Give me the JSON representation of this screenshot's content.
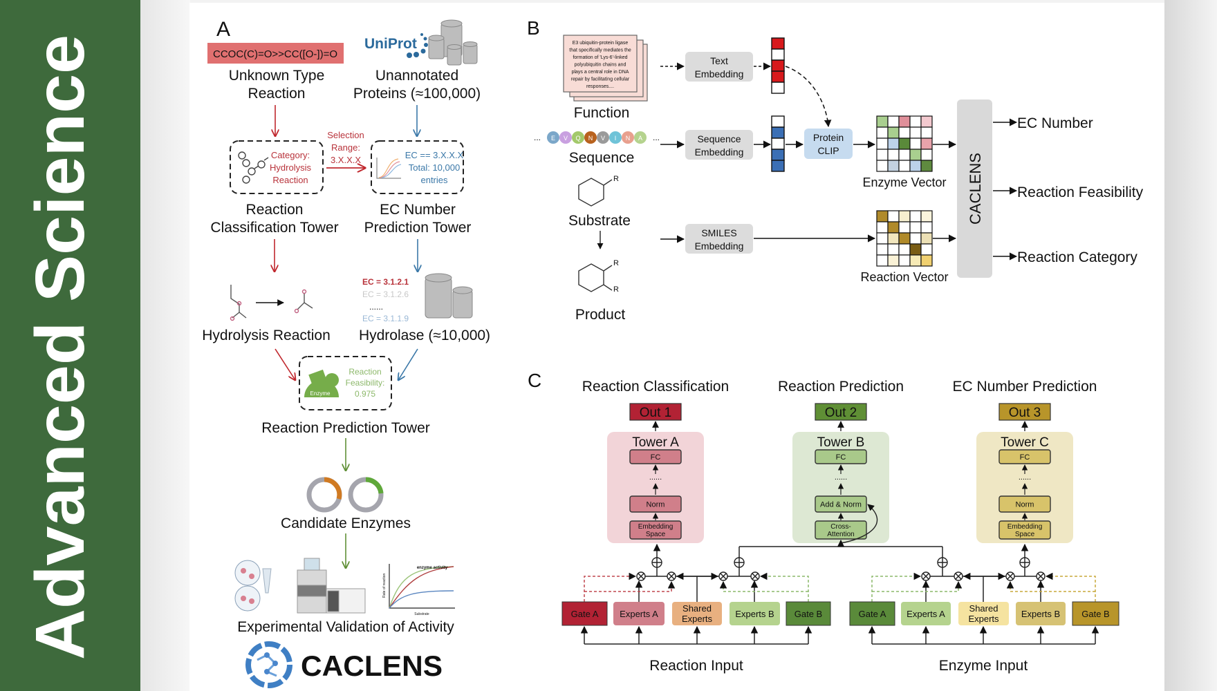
{
  "banner": {
    "text": "Advanced Science",
    "color": "#3e6a3c"
  },
  "panel_a": {
    "letter": "A",
    "smiles": "CCOC(C)=O>>CC([O-])=O",
    "unknown_label": [
      "Unknown Type",
      "Reaction"
    ],
    "uniprot_logo": "UniProt",
    "unannotated_label": [
      "Unannotated",
      "Proteins (≈100,000)"
    ],
    "category_box": [
      "Category:",
      "Hydrolysis",
      "Reaction"
    ],
    "selection": [
      "Selection",
      "Range:",
      "3.X.X.X"
    ],
    "ec_box": [
      "EC == 3.X.X.X",
      "Total: 10,000",
      "entries"
    ],
    "rc_tower": [
      "Reaction",
      "Classification Tower"
    ],
    "ec_tower": [
      "EC Number",
      "Prediction Tower"
    ],
    "ec_list": [
      "EC = 3.1.2.1",
      "EC = 3.1.2.6",
      "......",
      "EC = 3.1.1.9"
    ],
    "hydrolysis_label": "Hydrolysis Reaction",
    "hydrolase_label": "Hydrolase (≈10,000)",
    "enzyme_tag": "Enzyme",
    "feasibility": [
      "Reaction",
      "Feasibility:",
      "0.975"
    ],
    "rp_tower": "Reaction Prediction Tower",
    "candidate_label": "Candidate Enzymes",
    "chart_title": "enzyme activity",
    "chart_ylabel": "Rate of reaction",
    "chart_xlabel": "Substrate",
    "validation_label": "Experimental Validation of Activity",
    "logo_text": "CACLENS"
  },
  "panel_b": {
    "letter": "B",
    "function_text": [
      "E3 ubiquitin-protein ligase",
      "that specifically mediates the",
      "formation of 'Lys-6'-linked",
      "polyubiquitin chains and",
      "plays a central role in DNA",
      "repair by facilitating cellular",
      "responses...."
    ],
    "function_label": "Function",
    "sequence_letters": [
      "E",
      "V",
      "Q",
      "N",
      "V",
      "I",
      "N",
      "A"
    ],
    "sequence_colors": [
      "#7ba7c9",
      "#c9a0e0",
      "#a3c96b",
      "#b8621e",
      "#9a9a9a",
      "#6fc3d8",
      "#e8a08e",
      "#b5d38e"
    ],
    "sequence_label": "Sequence",
    "substrate_label": "Substrate",
    "product_label": "Product",
    "r_group": "R",
    "text_embedding": [
      "Text",
      "Embedding"
    ],
    "sequence_embedding": [
      "Sequence",
      "Embedding"
    ],
    "smiles_embedding": [
      "SMILES",
      "Embedding"
    ],
    "protein_clip": [
      "Protein",
      "CLIP"
    ],
    "text_vector": [
      "#d7191c",
      "#ffffff",
      "#d7191c",
      "#d7191c",
      "#ffffff"
    ],
    "seq_vector": [
      "#ffffff",
      "#3b6fb5",
      "#ffffff",
      "#3b6fb5",
      "#3b6fb5"
    ],
    "enzyme_vector_label": "Enzyme Vector",
    "enzyme_vector": [
      [
        "#a9cf8f",
        "#ffffff",
        "#e08f9a",
        "#ffffff",
        "#f3c9cf"
      ],
      [
        "#ffffff",
        "#a9cf8f",
        "#ffffff",
        "#ffffff",
        "#ffffff"
      ],
      [
        "#ffffff",
        "#bcd2ea",
        "#5a8a3a",
        "#ffffff",
        "#e8a3ab"
      ],
      [
        "#ffffff",
        "#ffffff",
        "#ffffff",
        "#a9cf8f",
        "#ffffff"
      ],
      [
        "#ffffff",
        "#c3d1e0",
        "#ffffff",
        "#bcd2ea",
        "#5f8a3f"
      ]
    ],
    "reaction_vector_label": "Reaction Vector",
    "reaction_vector": [
      [
        "#b08a2a",
        "#ffffff",
        "#f6efcf",
        "#ffffff",
        "#faf4dc"
      ],
      [
        "#ffffff",
        "#b08a2a",
        "#ffffff",
        "#ffffff",
        "#ffffff"
      ],
      [
        "#ffffff",
        "#f1e6bd",
        "#b08a2a",
        "#ffffff",
        "#ece0b5"
      ],
      [
        "#ffffff",
        "#ffffff",
        "#ffffff",
        "#7a5d14",
        "#ffffff"
      ],
      [
        "#ffffff",
        "#faf2d6",
        "#ffffff",
        "#f7ebb6",
        "#f0d070"
      ]
    ],
    "model_name": "CACLENS",
    "outputs": [
      "EC Number",
      "Reaction Feasibility",
      "Reaction Category"
    ]
  },
  "panel_c": {
    "letter": "C",
    "towers": [
      {
        "heading": "Reaction Classification",
        "out": "Out 1",
        "title": "Tower A",
        "out_color": "#b22234",
        "bg": "#f2d4d8",
        "inner": "#d07f8a",
        "layers": [
          [
            "FC"
          ],
          [
            "Norm"
          ],
          [
            "Embedding",
            "Space"
          ]
        ]
      },
      {
        "heading": "Reaction Prediction",
        "out": "Out 2",
        "title": "Tower B",
        "out_color": "#5f8f35",
        "bg": "#dde8d3",
        "inner": "#a9c98a",
        "layers": [
          [
            "FC"
          ],
          [
            "Add & Norm"
          ],
          [
            "Cross-",
            "Attention"
          ]
        ]
      },
      {
        "heading": "EC Number Prediction",
        "out": "Out 3",
        "title": "Tower C",
        "out_color": "#b8952a",
        "bg": "#efe7c4",
        "inner": "#d8c36a",
        "layers": [
          [
            "FC"
          ],
          [
            "Norm"
          ],
          [
            "Embedding",
            "Space"
          ]
        ]
      }
    ],
    "dots": "......",
    "groups": [
      {
        "input_label": "Reaction Input",
        "boxes": [
          {
            "lines": [
              "Gate A"
            ],
            "color": "#b22234"
          },
          {
            "lines": [
              "Experts A"
            ],
            "color": "#d07f8a"
          },
          {
            "lines": [
              "Shared",
              "Experts"
            ],
            "color": "#e8b080"
          },
          {
            "lines": [
              "Experts B"
            ],
            "color": "#b5d38e"
          },
          {
            "lines": [
              "Gate B"
            ],
            "color": "#5a8a3a"
          }
        ]
      },
      {
        "input_label": "Enzyme Input",
        "boxes": [
          {
            "lines": [
              "Gate A"
            ],
            "color": "#5a8a3a"
          },
          {
            "lines": [
              "Experts A"
            ],
            "color": "#b5d38e"
          },
          {
            "lines": [
              "Shared",
              "Experts"
            ],
            "color": "#f5e3a0"
          },
          {
            "lines": [
              "Experts B"
            ],
            "color": "#d6c274"
          },
          {
            "lines": [
              "Gate B"
            ],
            "color": "#b8952a"
          }
        ]
      }
    ]
  }
}
